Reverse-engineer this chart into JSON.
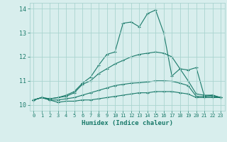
{
  "x": [
    0,
    1,
    2,
    3,
    4,
    5,
    6,
    7,
    8,
    9,
    10,
    11,
    12,
    13,
    14,
    15,
    16,
    17,
    18,
    19,
    20,
    21,
    22,
    23
  ],
  "line1": [
    10.2,
    10.3,
    10.2,
    10.1,
    10.15,
    10.15,
    10.2,
    10.2,
    10.25,
    10.3,
    10.35,
    10.4,
    10.45,
    10.5,
    10.5,
    10.55,
    10.55,
    10.55,
    10.5,
    10.45,
    10.3,
    10.3,
    10.3,
    10.3
  ],
  "line2": [
    10.2,
    10.3,
    10.2,
    10.2,
    10.25,
    10.3,
    10.4,
    10.5,
    10.6,
    10.7,
    10.8,
    10.85,
    10.9,
    10.92,
    10.95,
    11.0,
    11.0,
    10.98,
    10.9,
    10.8,
    10.35,
    10.35,
    10.35,
    10.3
  ],
  "line3": [
    10.2,
    10.3,
    10.25,
    10.3,
    10.35,
    10.5,
    10.85,
    11.0,
    11.3,
    11.5,
    11.7,
    11.85,
    12.0,
    12.1,
    12.15,
    12.2,
    12.15,
    12.0,
    11.5,
    11.0,
    10.45,
    10.4,
    10.4,
    10.3
  ],
  "line4": [
    10.2,
    10.3,
    10.25,
    10.3,
    10.4,
    10.55,
    10.9,
    11.15,
    11.65,
    12.1,
    12.2,
    13.4,
    13.45,
    13.25,
    13.8,
    13.95,
    13.0,
    11.2,
    11.5,
    11.45,
    11.55,
    10.35,
    10.4,
    10.3
  ],
  "background_color": "#d8eeed",
  "grid_color": "#aad4d0",
  "line_color": "#1a7a6a",
  "ylim": [
    9.75,
    14.25
  ],
  "xlim": [
    -0.5,
    23.5
  ],
  "yticks": [
    10,
    11,
    12,
    13,
    14
  ],
  "xticks": [
    0,
    1,
    2,
    3,
    4,
    5,
    6,
    7,
    8,
    9,
    10,
    11,
    12,
    13,
    14,
    15,
    16,
    17,
    18,
    19,
    20,
    21,
    22,
    23
  ],
  "xlabel": "Humidex (Indice chaleur)"
}
